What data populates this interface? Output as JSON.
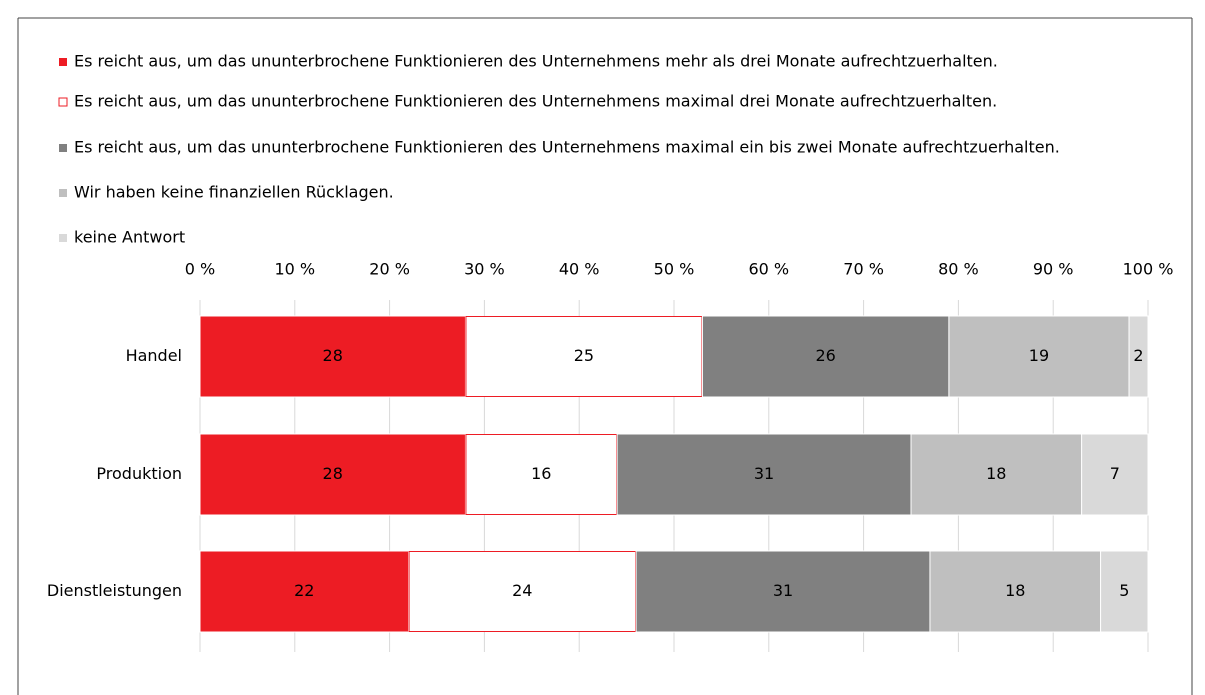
{
  "chart_data": {
    "type": "stacked_barh",
    "categories": [
      "Handel",
      "Produktion",
      "Dienstleistungen"
    ],
    "series": [
      {
        "name": "Es reicht aus, um das ununterbrochene Funktionieren des Unternehmens mehr als drei Monate aufrechtzuerhalten.",
        "color": "#ed1c24",
        "values": [
          28,
          28,
          22
        ]
      },
      {
        "name": "Es reicht aus, um das ununterbrochene Funktionieren des Unternehmens maximal drei Monate aufrechtzuerhalten.",
        "color": "#ffffff",
        "edgecolor": "#ed1c24",
        "values": [
          25,
          16,
          24
        ]
      },
      {
        "name": "Es reicht aus, um das ununterbrochene Funktionieren des Unternehmens maximal ein bis zwei Monate aufrechtzuerhalten.",
        "color": "#808080",
        "values": [
          26,
          31,
          31
        ]
      },
      {
        "name": "Wir haben keine finanziellen Rücklagen.",
        "color": "#bfbfbf",
        "values": [
          19,
          18,
          18
        ]
      },
      {
        "name": "keine Antwort",
        "color": "#d9d9d9",
        "values": [
          2,
          7,
          5
        ]
      }
    ],
    "xlim": [
      0,
      100
    ],
    "xticks": [
      {
        "value": 0,
        "label": "0 %"
      },
      {
        "value": 10,
        "label": "10 %"
      },
      {
        "value": 20,
        "label": "20 %"
      },
      {
        "value": 30,
        "label": "30 %"
      },
      {
        "value": 40,
        "label": "40 %"
      },
      {
        "value": 50,
        "label": "50 %"
      },
      {
        "value": 60,
        "label": "60 %"
      },
      {
        "value": 70,
        "label": "70 %"
      },
      {
        "value": 80,
        "label": "80 %"
      },
      {
        "value": 90,
        "label": "90 %"
      },
      {
        "value": 100,
        "label": "100 %"
      }
    ],
    "grid": true,
    "legend": "top"
  }
}
